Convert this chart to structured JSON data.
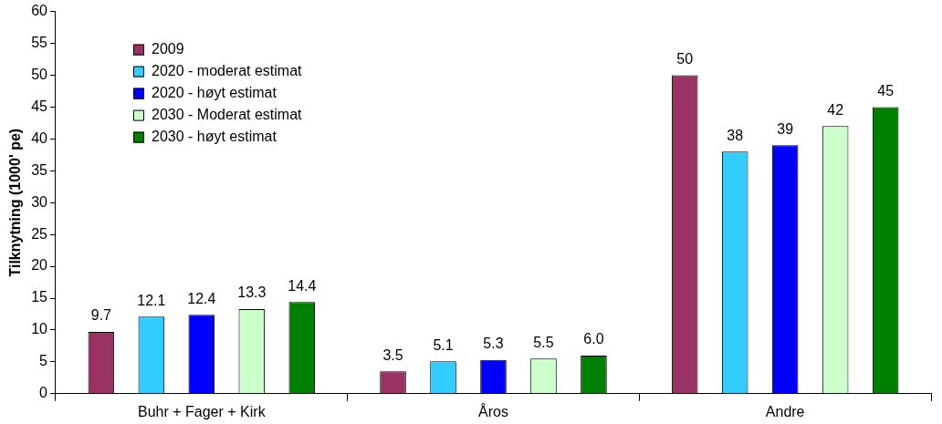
{
  "chart_data": {
    "type": "bar",
    "ylabel": "Tilknytning (1000' pe)",
    "categories": [
      "Buhr + Fager + Kirk",
      "Åros",
      "Andre"
    ],
    "series": [
      {
        "name": "2009",
        "color": "#993366",
        "values": [
          9.7,
          3.5,
          50
        ],
        "value_labels": [
          "9.7",
          "3.5",
          "50"
        ]
      },
      {
        "name": "2020 - moderat estimat",
        "color": "#33ccff",
        "values": [
          12.1,
          5.1,
          38
        ],
        "value_labels": [
          "12.1",
          "5.1",
          "38"
        ]
      },
      {
        "name": "2020 - høyt estimat",
        "color": "#0000ff",
        "values": [
          12.4,
          5.3,
          39
        ],
        "value_labels": [
          "12.4",
          "5.3",
          "39"
        ]
      },
      {
        "name": "2030 - Moderat estimat",
        "color": "#ccffcc",
        "values": [
          13.3,
          5.5,
          42
        ],
        "value_labels": [
          "13.3",
          "5.5",
          "42"
        ]
      },
      {
        "name": "2030 - høyt estimat",
        "color": "#008000",
        "values": [
          14.4,
          6,
          45
        ],
        "value_labels": [
          "14.4",
          "6.0",
          "45"
        ]
      }
    ],
    "ylim": [
      0,
      60
    ],
    "yticks": [
      0,
      5,
      10,
      15,
      20,
      25,
      30,
      35,
      40,
      45,
      50,
      55,
      60
    ],
    "grid": false,
    "legend": "top left"
  }
}
